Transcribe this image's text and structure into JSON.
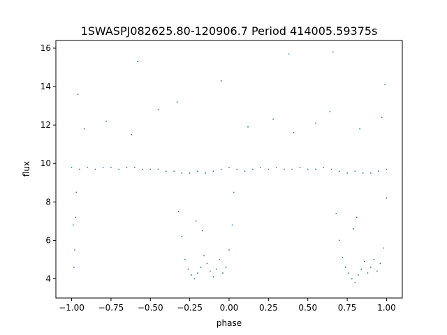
{
  "chart_data": {
    "type": "scatter",
    "title": "1SWASPJ082625.80-120906.7 Period 414005.59375s",
    "xlabel": "phase",
    "ylabel": "flux",
    "xlim": [
      -1.1,
      1.1
    ],
    "ylim": [
      3.0,
      16.4
    ],
    "grid": false,
    "legend": "none",
    "point_color": "#1f77b4",
    "x_ticks": [
      {
        "value": -1.0,
        "label": "−1.00"
      },
      {
        "value": -0.75,
        "label": "−0.75"
      },
      {
        "value": -0.5,
        "label": "−0.50"
      },
      {
        "value": -0.25,
        "label": "−0.25"
      },
      {
        "value": 0.0,
        "label": "0.00"
      },
      {
        "value": 0.25,
        "label": "0.25"
      },
      {
        "value": 0.5,
        "label": "0.50"
      },
      {
        "value": 0.75,
        "label": "0.75"
      },
      {
        "value": 1.0,
        "label": "1.00"
      }
    ],
    "y_ticks": [
      {
        "value": 4,
        "label": "4"
      },
      {
        "value": 6,
        "label": "6"
      },
      {
        "value": 8,
        "label": "8"
      },
      {
        "value": 10,
        "label": "10"
      },
      {
        "value": 12,
        "label": "12"
      },
      {
        "value": 14,
        "label": "14"
      },
      {
        "value": 16,
        "label": "16"
      }
    ],
    "series": [
      {
        "x": [
          -1.0,
          -0.95,
          -0.9,
          -0.85,
          -0.8,
          -0.75,
          -0.7,
          -0.65,
          -0.6,
          -0.55,
          -0.5,
          -0.45,
          -0.4,
          -0.35,
          -0.3,
          -0.25,
          -0.2,
          -0.15,
          -0.1,
          -0.05,
          0.0,
          0.05,
          0.1,
          0.15,
          0.2,
          0.25,
          0.3,
          0.35,
          0.4,
          0.45,
          0.5,
          0.55,
          0.6,
          0.65,
          0.7,
          0.75,
          0.8,
          0.85,
          0.9,
          0.95,
          1.0,
          -0.99,
          -0.98,
          -0.985,
          -0.975,
          -0.97,
          -0.32,
          -0.3,
          -0.28,
          -0.26,
          -0.24,
          -0.22,
          -0.2,
          -0.18,
          -0.16,
          -0.14,
          -0.12,
          -0.1,
          -0.08,
          -0.06,
          -0.04,
          -0.02,
          0.0,
          0.02,
          0.03,
          0.68,
          0.7,
          0.72,
          0.74,
          0.76,
          0.78,
          0.8,
          0.82,
          0.84,
          0.86,
          0.88,
          0.9,
          0.92,
          0.94,
          0.96,
          0.98,
          1.0,
          -0.92,
          -0.78,
          -0.62,
          -0.45,
          -0.33,
          0.12,
          0.28,
          0.41,
          0.55,
          0.64,
          0.83,
          0.97,
          -0.96,
          -0.58,
          -0.05,
          0.38,
          0.66,
          0.99,
          -0.21,
          -0.17,
          0.81,
          0.79
        ],
        "y": [
          9.8,
          9.7,
          9.8,
          9.7,
          9.8,
          9.8,
          9.7,
          9.8,
          9.8,
          9.7,
          9.7,
          9.7,
          9.6,
          9.6,
          9.5,
          9.5,
          9.6,
          9.5,
          9.6,
          9.7,
          9.8,
          9.7,
          9.6,
          9.7,
          9.8,
          9.7,
          9.8,
          9.7,
          9.7,
          9.8,
          9.7,
          9.7,
          9.8,
          9.7,
          9.6,
          9.5,
          9.6,
          9.5,
          9.5,
          9.6,
          9.7,
          6.8,
          5.5,
          4.6,
          7.2,
          8.5,
          7.5,
          6.2,
          5.0,
          4.5,
          4.2,
          4.0,
          4.3,
          4.6,
          5.2,
          4.8,
          4.4,
          4.1,
          4.5,
          5.0,
          4.3,
          4.6,
          5.5,
          6.8,
          8.5,
          7.4,
          6.0,
          5.1,
          4.6,
          4.3,
          4.0,
          3.8,
          4.2,
          4.5,
          4.9,
          4.3,
          4.6,
          5.0,
          4.4,
          4.8,
          5.6,
          8.2,
          11.8,
          12.2,
          11.5,
          12.8,
          13.2,
          11.9,
          12.3,
          11.6,
          12.1,
          12.7,
          11.8,
          12.4,
          13.6,
          15.3,
          14.3,
          15.7,
          15.8,
          14.1,
          7.0,
          6.5,
          7.2,
          6.6
        ]
      }
    ]
  }
}
